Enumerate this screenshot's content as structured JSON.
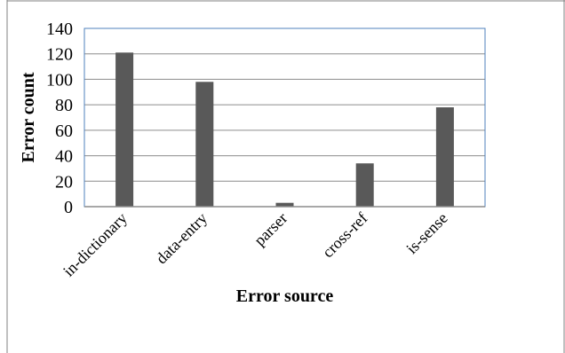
{
  "chart_data": {
    "type": "bar",
    "title": "",
    "xlabel": "Error source",
    "ylabel": "Error count",
    "categories": [
      "in-dictionary",
      "data-entry",
      "parser",
      "cross-ref",
      "is-sense"
    ],
    "values": [
      121,
      98,
      3,
      34,
      78
    ],
    "ylim": [
      0,
      140
    ],
    "yticks": [
      "0",
      "20",
      "40",
      "60",
      "80",
      "100",
      "120",
      "140"
    ],
    "grid": true,
    "legend": "none",
    "colors": {
      "bar": "#595959",
      "grid": "#8c8c8c",
      "plot_border": "#4f81bd",
      "frame_border": "#808080"
    }
  }
}
